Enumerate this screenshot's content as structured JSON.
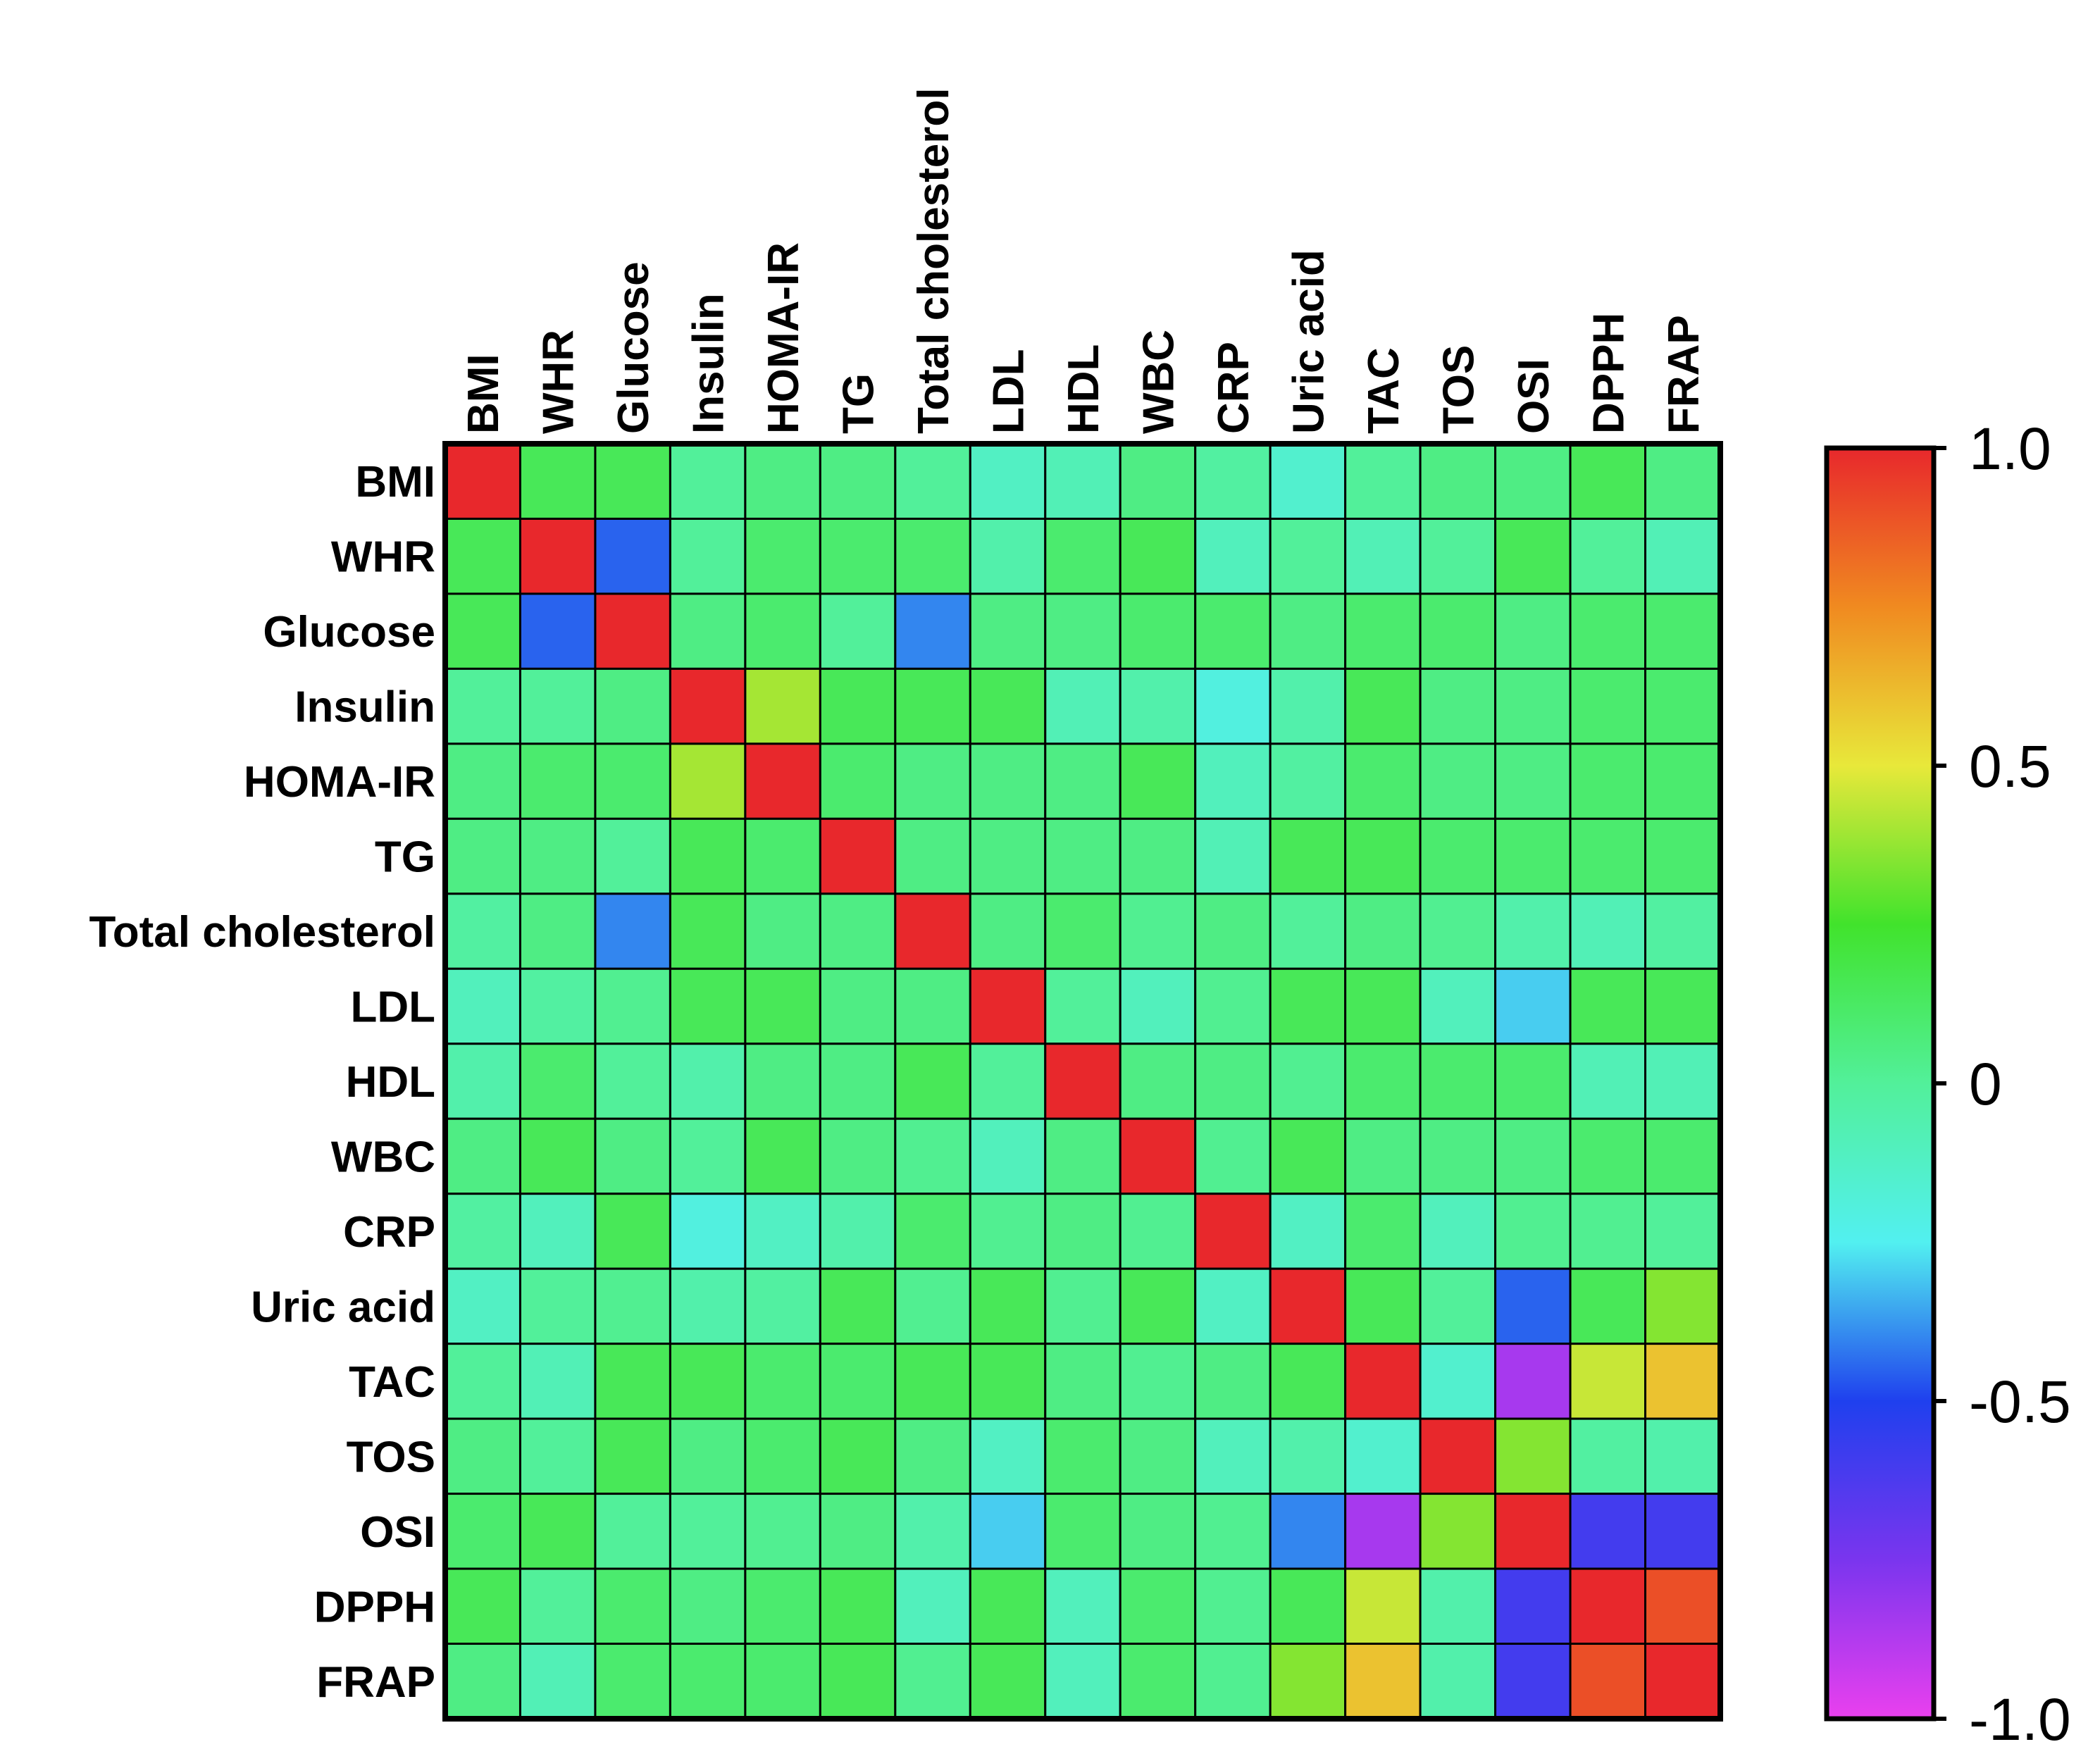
{
  "chart_data": {
    "type": "heatmap",
    "title": "",
    "xlabel": "",
    "ylabel": "",
    "row_labels": [
      "BMI",
      "WHR",
      "Glucose",
      "Insulin",
      "HOMA-IR",
      "TG",
      "Total cholesterol",
      "LDL",
      "HDL",
      "WBC",
      "CRP",
      "Uric acid",
      "TAC",
      "TOS",
      "OSI",
      "DPPH",
      "FRAP"
    ],
    "col_labels": [
      "BMI",
      "WHR",
      "Glucose",
      "Insulin",
      "HOMA-IR",
      "TG",
      "Total cholesterol",
      "LDL",
      "HDL",
      "WBC",
      "CRP",
      "Uric acid",
      "TAC",
      "TOS",
      "OSI",
      "DPPH",
      "FRAP"
    ],
    "values": [
      [
        1.0,
        0.15,
        0.15,
        0.0,
        0.05,
        0.05,
        0.0,
        -0.12,
        -0.08,
        0.05,
        -0.02,
        -0.15,
        0.0,
        0.05,
        0.05,
        0.15,
        0.05
      ],
      [
        0.15,
        1.0,
        -0.45,
        0.0,
        0.1,
        0.1,
        0.1,
        -0.05,
        0.1,
        0.15,
        -0.1,
        0.0,
        -0.08,
        0.0,
        0.15,
        0.0,
        -0.08
      ],
      [
        0.15,
        -0.45,
        1.0,
        0.05,
        0.1,
        0.0,
        -0.4,
        0.05,
        0.05,
        0.1,
        0.1,
        0.05,
        0.1,
        0.1,
        0.05,
        0.1,
        0.1
      ],
      [
        0.0,
        0.0,
        0.05,
        1.0,
        0.4,
        0.15,
        0.15,
        0.15,
        -0.08,
        -0.05,
        -0.2,
        -0.05,
        0.15,
        0.05,
        0.05,
        0.1,
        0.1
      ],
      [
        0.05,
        0.1,
        0.1,
        0.4,
        1.0,
        0.1,
        0.05,
        0.05,
        0.05,
        0.15,
        -0.1,
        -0.02,
        0.1,
        0.05,
        0.05,
        0.1,
        0.1
      ],
      [
        0.05,
        0.05,
        0.0,
        0.15,
        0.1,
        1.0,
        0.05,
        0.05,
        0.05,
        0.05,
        -0.08,
        0.15,
        0.15,
        0.1,
        0.1,
        0.1,
        0.1
      ],
      [
        -0.02,
        0.05,
        -0.4,
        0.15,
        0.05,
        0.05,
        1.0,
        0.05,
        0.1,
        0.02,
        0.05,
        0.0,
        0.05,
        0.02,
        -0.05,
        -0.08,
        -0.02
      ],
      [
        -0.1,
        -0.02,
        0.02,
        0.15,
        0.15,
        0.05,
        0.05,
        1.0,
        0.0,
        -0.1,
        0.02,
        0.15,
        0.15,
        -0.1,
        -0.3,
        0.15,
        0.15
      ],
      [
        -0.05,
        0.1,
        0.0,
        -0.05,
        0.05,
        0.05,
        0.15,
        0.0,
        1.0,
        0.05,
        0.05,
        0.02,
        0.1,
        0.1,
        0.1,
        -0.08,
        -0.08
      ],
      [
        0.05,
        0.15,
        0.05,
        0.0,
        0.15,
        0.05,
        0.02,
        -0.1,
        0.05,
        1.0,
        0.02,
        0.15,
        0.05,
        0.05,
        0.05,
        0.1,
        0.1
      ],
      [
        -0.02,
        -0.1,
        0.15,
        -0.2,
        -0.12,
        -0.05,
        0.1,
        0.02,
        0.05,
        0.02,
        1.0,
        -0.12,
        0.1,
        -0.1,
        0.02,
        0.02,
        0.0
      ],
      [
        -0.12,
        0.0,
        0.02,
        -0.05,
        -0.02,
        0.15,
        0.02,
        0.15,
        0.02,
        0.15,
        -0.12,
        1.0,
        0.15,
        0.0,
        -0.45,
        0.15,
        0.35
      ],
      [
        0.0,
        -0.08,
        0.15,
        0.15,
        0.1,
        0.1,
        0.15,
        0.15,
        0.05,
        0.02,
        0.05,
        0.15,
        1.0,
        -0.15,
        -0.85,
        0.45,
        0.6
      ],
      [
        0.05,
        0.0,
        0.15,
        0.05,
        0.1,
        0.15,
        0.05,
        -0.12,
        0.1,
        0.05,
        -0.1,
        -0.05,
        -0.15,
        1.0,
        0.35,
        -0.02,
        -0.05
      ],
      [
        0.1,
        0.15,
        0.0,
        0.0,
        0.02,
        0.05,
        -0.05,
        -0.3,
        0.1,
        0.05,
        0.02,
        -0.4,
        -0.85,
        0.35,
        1.0,
        -0.6,
        -0.6
      ],
      [
        0.15,
        0.0,
        0.1,
        0.05,
        0.1,
        0.15,
        -0.1,
        0.15,
        -0.1,
        0.1,
        0.02,
        0.15,
        0.45,
        -0.05,
        -0.6,
        1.0,
        0.9
      ],
      [
        0.05,
        -0.08,
        0.1,
        0.1,
        0.1,
        0.15,
        0.02,
        0.15,
        -0.1,
        0.1,
        0.02,
        0.35,
        0.6,
        -0.05,
        -0.6,
        0.9,
        1.0
      ]
    ],
    "colorbar": {
      "min": -1.0,
      "max": 1.0,
      "ticks": [
        1.0,
        0.5,
        0,
        -0.5,
        -1.0
      ],
      "tick_labels": [
        "1.0",
        "0.5",
        "0",
        "-0.5",
        "-1.0"
      ]
    },
    "legend": "right"
  }
}
